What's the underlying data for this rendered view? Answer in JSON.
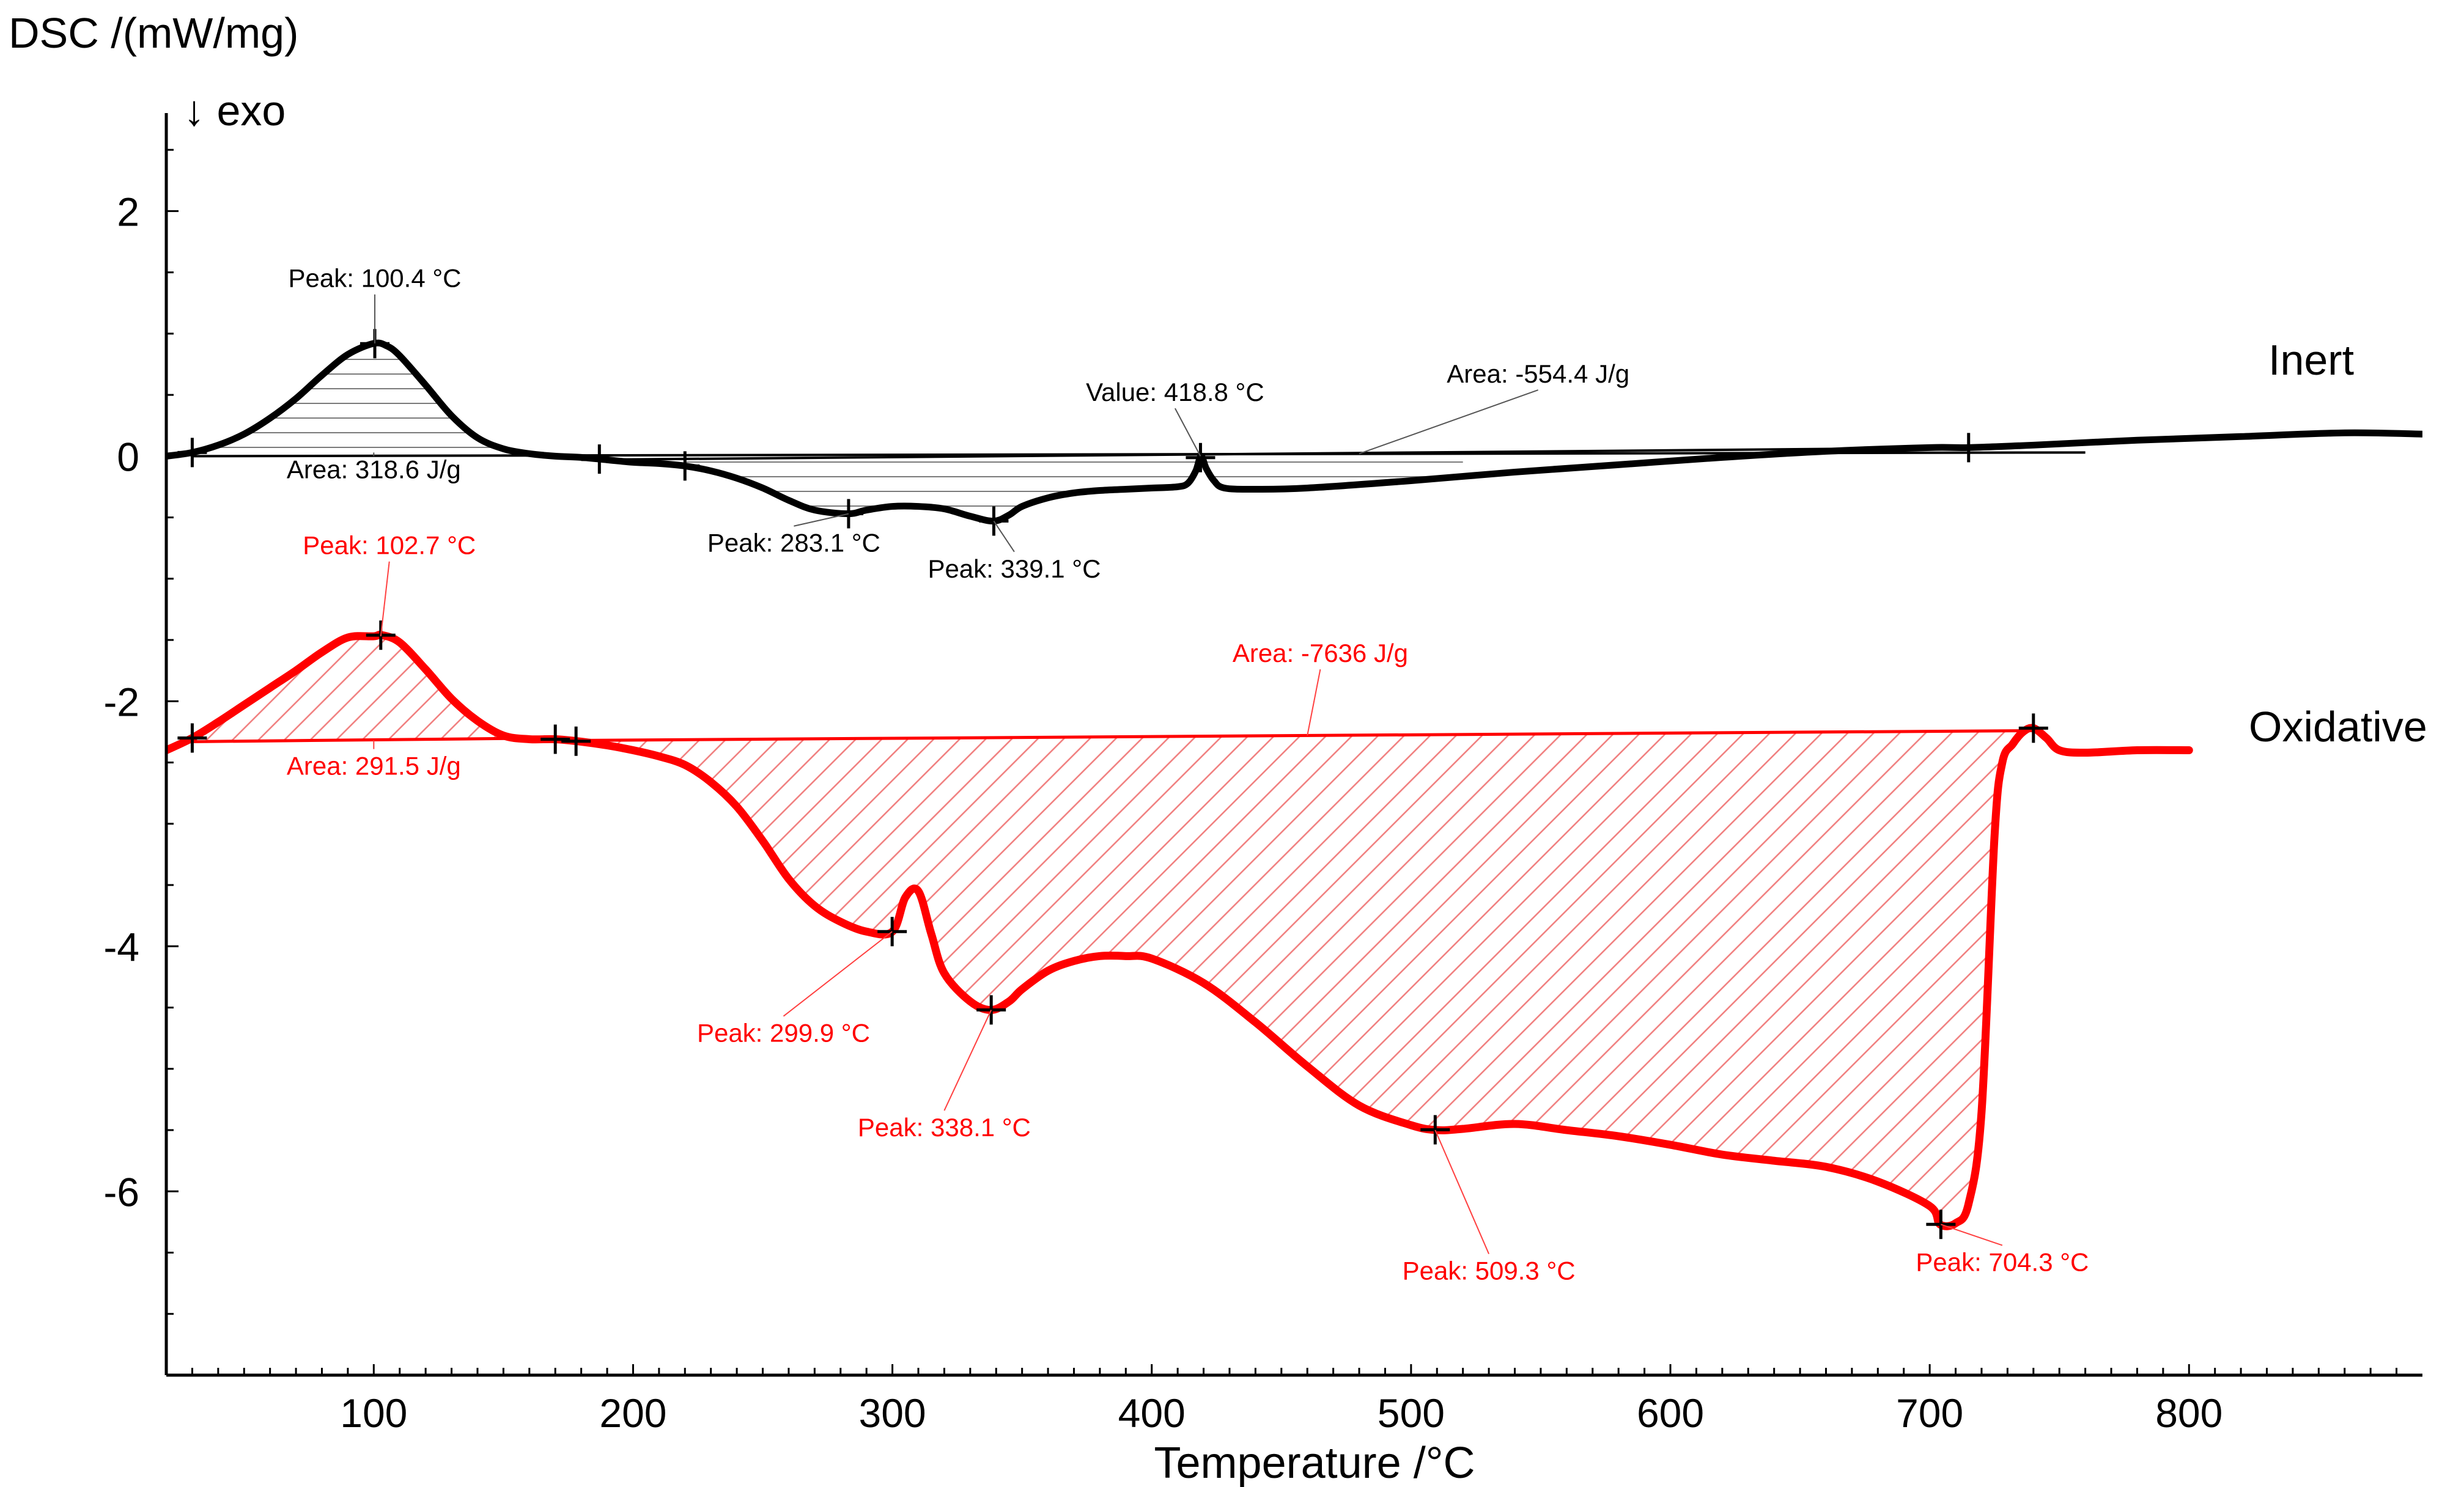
{
  "chart_data": {
    "type": "line",
    "ylabel": "DSC /(mW/mg)",
    "ylabel_note": "↓ exo",
    "xlabel": "Temperature /°C",
    "xlim": [
      20,
      890
    ],
    "ylim": [
      -7.5,
      2.8
    ],
    "x_ticks": [
      100,
      200,
      300,
      400,
      500,
      600,
      700,
      800
    ],
    "y_ticks": [
      2,
      0,
      -2,
      -4,
      -6
    ],
    "legend": [
      "Inert",
      "Oxidative"
    ],
    "colors": {
      "inert": "#000000",
      "oxidative": "#ff0000",
      "inert_hatch": "#707070",
      "oxidative_hatch": "#f08080"
    },
    "series": [
      {
        "name": "Inert",
        "label": "Inert",
        "color": "#000000",
        "x": [
          20,
          30,
          40,
          50,
          60,
          70,
          80,
          90,
          100,
          105,
          110,
          120,
          130,
          140,
          150,
          160,
          170,
          180,
          190,
          200,
          210,
          220,
          230,
          240,
          250,
          260,
          270,
          283,
          290,
          300,
          310,
          320,
          330,
          339,
          345,
          350,
          360,
          370,
          380,
          390,
          400,
          410,
          414,
          417,
          419,
          421,
          424,
          428,
          440,
          460,
          500,
          540,
          580,
          620,
          660,
          700,
          715,
          740,
          780,
          820,
          860,
          890
        ],
        "y": [
          0.0,
          0.03,
          0.09,
          0.18,
          0.31,
          0.47,
          0.66,
          0.83,
          0.92,
          0.9,
          0.82,
          0.58,
          0.33,
          0.15,
          0.06,
          0.02,
          0.0,
          -0.01,
          -0.03,
          -0.05,
          -0.06,
          -0.08,
          -0.12,
          -0.18,
          -0.26,
          -0.36,
          -0.44,
          -0.47,
          -0.44,
          -0.41,
          -0.41,
          -0.43,
          -0.49,
          -0.53,
          -0.48,
          -0.41,
          -0.34,
          -0.3,
          -0.28,
          -0.27,
          -0.26,
          -0.25,
          -0.22,
          -0.12,
          0.0,
          -0.1,
          -0.2,
          -0.26,
          -0.27,
          -0.26,
          -0.2,
          -0.13,
          -0.07,
          -0.01,
          0.04,
          0.07,
          0.07,
          0.09,
          0.13,
          0.16,
          0.19,
          0.18
        ]
      },
      {
        "name": "Oxidative",
        "label": "Oxidative",
        "color": "#ff0000",
        "x": [
          20,
          30,
          40,
          50,
          60,
          70,
          80,
          90,
          100,
          103,
          110,
          120,
          130,
          140,
          150,
          160,
          170,
          180,
          190,
          200,
          210,
          220,
          230,
          240,
          250,
          260,
          270,
          280,
          290,
          300,
          305,
          310,
          315,
          320,
          330,
          338,
          345,
          350,
          360,
          370,
          380,
          390,
          400,
          420,
          440,
          460,
          480,
          500,
          510,
          520,
          540,
          560,
          580,
          600,
          620,
          640,
          660,
          680,
          700,
          704,
          710,
          715,
          720,
          725,
          728,
          732,
          736,
          740,
          745,
          750,
          760,
          780,
          800
        ],
        "y": [
          -2.4,
          -2.3,
          -2.17,
          -2.03,
          -1.89,
          -1.75,
          -1.6,
          -1.48,
          -1.47,
          -1.46,
          -1.52,
          -1.74,
          -1.98,
          -2.16,
          -2.28,
          -2.31,
          -2.31,
          -2.33,
          -2.36,
          -2.4,
          -2.45,
          -2.52,
          -2.66,
          -2.86,
          -3.14,
          -3.45,
          -3.67,
          -3.8,
          -3.88,
          -3.88,
          -3.6,
          -3.55,
          -3.9,
          -4.22,
          -4.45,
          -4.52,
          -4.45,
          -4.35,
          -4.2,
          -4.12,
          -4.08,
          -4.08,
          -4.1,
          -4.3,
          -4.62,
          -4.98,
          -5.3,
          -5.46,
          -5.5,
          -5.49,
          -5.45,
          -5.5,
          -5.55,
          -5.62,
          -5.7,
          -5.75,
          -5.8,
          -5.92,
          -6.12,
          -6.27,
          -6.26,
          -6.1,
          -5.35,
          -3.1,
          -2.5,
          -2.35,
          -2.25,
          -2.22,
          -2.3,
          -2.4,
          -2.42,
          -2.4,
          -2.4
        ]
      }
    ],
    "baselines": [
      {
        "series": "Inert",
        "from": [
          30,
          0.0
        ],
        "to": [
          760,
          0.03
        ]
      },
      {
        "series": "Inert",
        "from": [
          180,
          -0.03
        ],
        "to": [
          720,
          0.07
        ]
      },
      {
        "series": "Oxidative",
        "from": [
          30,
          -2.33
        ],
        "to": [
          170,
          -2.3
        ]
      },
      {
        "series": "Oxidative",
        "from": [
          178,
          -2.32
        ],
        "to": [
          740,
          -2.24
        ]
      }
    ],
    "shaded_areas": [
      {
        "series": "Inert",
        "range": [
          30,
          170
        ],
        "area": "318.6 J/g"
      },
      {
        "series": "Inert",
        "range": [
          220,
          520
        ],
        "area": "-554.4 J/g"
      },
      {
        "series": "Oxidative",
        "range": [
          30,
          170
        ],
        "area": "291.5 J/g"
      },
      {
        "series": "Oxidative",
        "range": [
          178,
          740
        ],
        "area": "-7636 J/g"
      }
    ],
    "markers": [
      {
        "series": "Inert",
        "x": [
          30,
          100.4,
          187,
          220,
          283.1,
          339.1,
          418.8,
          715
        ]
      },
      {
        "series": "Oxidative",
        "x": [
          30,
          102.7,
          170,
          178,
          299.9,
          338.1,
          509.3,
          704.3,
          740
        ]
      }
    ],
    "annotations": [
      {
        "series": "Inert",
        "text": "Peak: 100.4 °C",
        "x": 100.4,
        "y": 0.92,
        "label_at": [
          100.4,
          1.38
        ]
      },
      {
        "series": "Inert",
        "text": "Area: 318.6 J/g",
        "x": 100,
        "y": 0.0,
        "label_at": [
          100,
          -0.18
        ]
      },
      {
        "series": "Inert",
        "text": "Peak: 283.1 °C",
        "x": 283.1,
        "y": -0.47,
        "label_at": [
          262,
          -0.78
        ]
      },
      {
        "series": "Inert",
        "text": "Peak: 339.1 °C",
        "x": 339.1,
        "y": -0.53,
        "label_at": [
          347,
          -0.99
        ]
      },
      {
        "series": "Inert",
        "text": "Value: 418.8 °C",
        "x": 418.8,
        "y": 0.0,
        "label_at": [
          409,
          0.45
        ]
      },
      {
        "series": "Inert",
        "text": "Area: -554.4 J/g",
        "x": 480,
        "y": 0.02,
        "label_at": [
          549,
          0.6
        ]
      },
      {
        "series": "Oxidative",
        "text": "Peak: 102.7 °C",
        "x": 102.7,
        "y": -1.47,
        "label_at": [
          106,
          -0.8
        ]
      },
      {
        "series": "Oxidative",
        "text": "Area: 291.5 J/g",
        "x": 100,
        "y": -2.32,
        "label_at": [
          100,
          -2.6
        ]
      },
      {
        "series": "Oxidative",
        "text": "Area: -7636 J/g",
        "x": 460,
        "y": -2.28,
        "label_at": [
          465,
          -1.68
        ]
      },
      {
        "series": "Oxidative",
        "text": "Peak: 299.9 °C",
        "x": 299.9,
        "y": -3.88,
        "label_at": [
          258,
          -4.78
        ]
      },
      {
        "series": "Oxidative",
        "text": "Peak: 338.1 °C",
        "x": 338.1,
        "y": -4.52,
        "label_at": [
          320,
          -5.55
        ]
      },
      {
        "series": "Oxidative",
        "text": "Peak: 509.3 °C",
        "x": 509.3,
        "y": -5.5,
        "label_at": [
          530,
          -6.72
        ]
      },
      {
        "series": "Oxidative",
        "text": "Peak: 704.3 °C",
        "x": 704.3,
        "y": -6.27,
        "label_at": [
          728,
          -6.65
        ]
      }
    ]
  }
}
